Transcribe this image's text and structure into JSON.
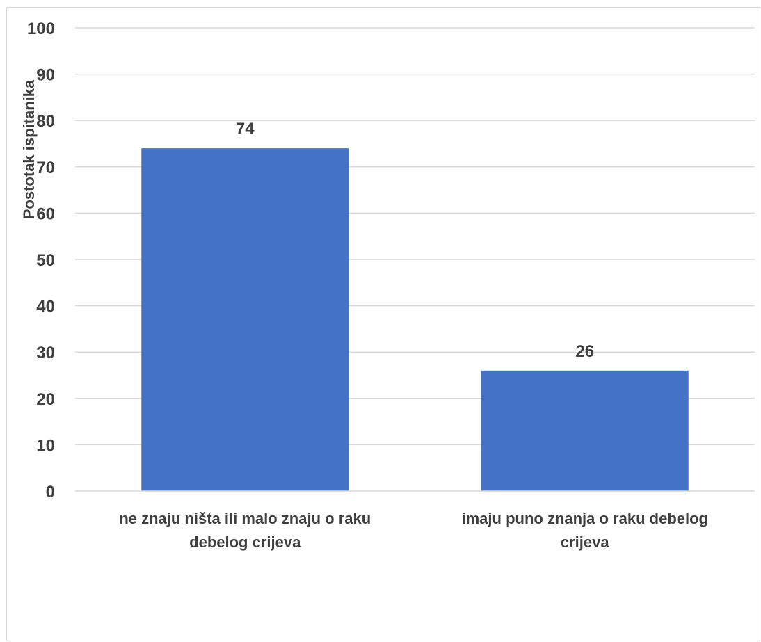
{
  "chart_data": {
    "type": "bar",
    "title": "",
    "xlabel": "",
    "ylabel": "Postotak ispitanika",
    "categories": [
      [
        "ne znaju ništa ili malo znaju o raku",
        "debelog crijeva"
      ],
      [
        "imaju puno znanja o raku debelog",
        "crijeva"
      ]
    ],
    "values": [
      74,
      26
    ],
    "data_labels": [
      "74",
      "26"
    ],
    "ylim": [
      0,
      100
    ],
    "yticks": [
      "0",
      "10",
      "20",
      "30",
      "40",
      "50",
      "60",
      "70",
      "80",
      "90",
      "100"
    ],
    "grid": true,
    "legend": "none",
    "bar_color": "#4472c4",
    "gridline_color": "#d9d9d9",
    "text_color": "#3f3f3f"
  }
}
